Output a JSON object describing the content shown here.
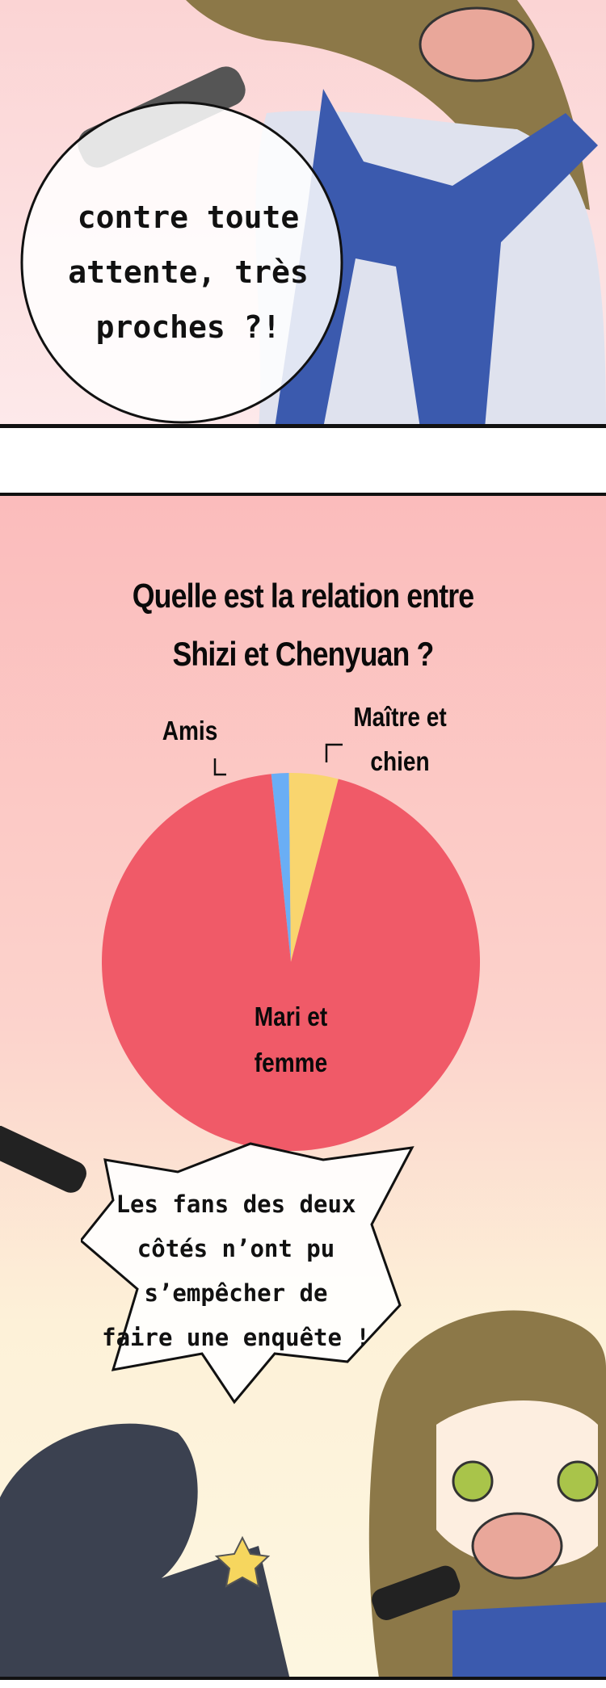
{
  "panel1": {
    "bubble_lines": [
      "contre toute",
      "attente, très",
      "proches ?!"
    ]
  },
  "panel2": {
    "title_lines": [
      "Quelle est la relation entre",
      "Shizi et Chenyuan ?"
    ],
    "bubble_lines": [
      "Les fans des deux",
      "côtés n’ont pu",
      "s’empêcher de",
      "faire une enquête !"
    ]
  },
  "chart_data": {
    "type": "pie",
    "title": "Quelle est la relation entre Shizi et Chenyuan ?",
    "slices": [
      {
        "label": "Amis",
        "label_lines": [
          "Amis"
        ],
        "value": 1.5,
        "color": "#6aaef5"
      },
      {
        "label": "Maître et chien",
        "label_lines": [
          "Maître et",
          "chien"
        ],
        "value": 4.2,
        "color": "#f9d56e"
      },
      {
        "label": "Mari et femme",
        "label_lines": [
          "Mari et",
          "femme"
        ],
        "value": 94.3,
        "color": "#f05a68"
      }
    ]
  },
  "colors": {
    "hair": "#8c7848",
    "uniform_blue": "#3b5aae",
    "skin": "#fdeee0"
  }
}
